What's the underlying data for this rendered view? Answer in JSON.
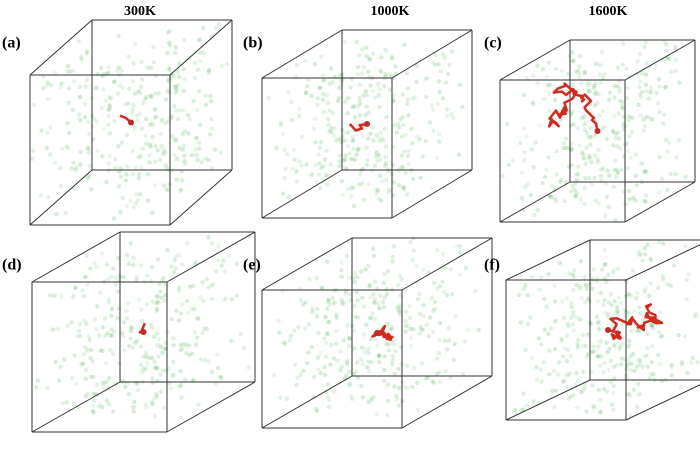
{
  "columns": [
    "300K",
    "1000K",
    "1600K"
  ],
  "panels": [
    "(a)",
    "(b)",
    "(c)",
    "(d)",
    "(e)",
    "(f)"
  ]
}
